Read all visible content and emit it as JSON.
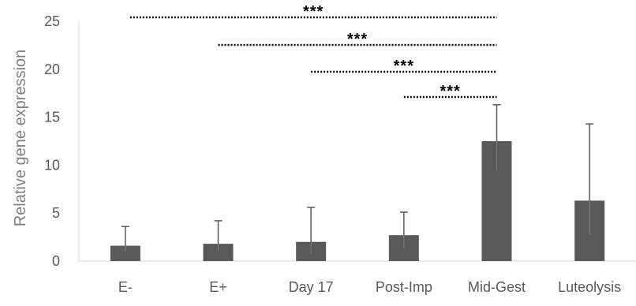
{
  "chart_data": {
    "type": "bar",
    "title": "",
    "xlabel": "",
    "ylabel": "Relative gene expression",
    "ylim": [
      0,
      25
    ],
    "yticks": [
      0,
      5,
      10,
      15,
      20,
      25
    ],
    "grid": false,
    "legend": "none",
    "categories": [
      "E-",
      "E+",
      "Day 17",
      "Post-Imp",
      "Mid-Gest",
      "Luteolysis"
    ],
    "values": [
      1.6,
      1.8,
      2.0,
      2.7,
      12.5,
      6.3
    ],
    "error_plus": [
      2.0,
      2.4,
      3.6,
      2.4,
      3.8,
      8.0
    ],
    "error_minus": [
      0.6,
      0.7,
      1.2,
      1.3,
      3.0,
      3.5
    ],
    "bar_color": "#595959",
    "significance": [
      {
        "from": "E-",
        "to": "Mid-Gest",
        "label": "***"
      },
      {
        "from": "E+",
        "to": "Mid-Gest",
        "label": "***"
      },
      {
        "from": "Day 17",
        "to": "Mid-Gest",
        "label": "***"
      },
      {
        "from": "Post-Imp",
        "to": "Mid-Gest",
        "label": "***"
      }
    ]
  }
}
